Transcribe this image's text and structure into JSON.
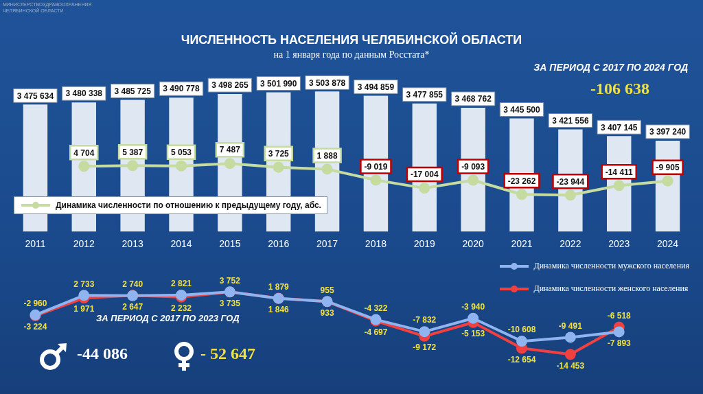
{
  "chart_data": [
    {
      "type": "bar",
      "title": "ЧИСЛЕННОСТЬ НАСЕЛЕНИЯ ЧЕЛЯБИНСКОЙ ОБЛАСТИ",
      "subtitle": "на 1 января года по данным Росстата*",
      "categories": [
        "2011",
        "2012",
        "2013",
        "2014",
        "2015",
        "2016",
        "2017",
        "2018",
        "2019",
        "2020",
        "2021",
        "2022",
        "2023",
        "2024"
      ],
      "series": [
        {
          "color": "#dfe7f2",
          "values": [
            3475634,
            3480338,
            3485725,
            3490778,
            3498265,
            3501990,
            3503878,
            3494859,
            3477855,
            3468762,
            3445500,
            3421556,
            3407145,
            3397240
          ],
          "value_labels": [
            "3 475 634",
            "3 480 338",
            "3 485 725",
            "3 490 778",
            "3 498 265",
            "3 501 990",
            "3 503 878",
            "3 494 859",
            "3 477 855",
            "3 468 762",
            "3 445 500",
            "3 421 556",
            "3 407 145",
            "3 397 240"
          ]
        },
        {
          "type": "line",
          "axis": "y2",
          "name": "Динамика численности по отношению к предыдущему году, абс.",
          "color": "#c5dba0",
          "values": [
            null,
            4704,
            5387,
            5053,
            7487,
            3725,
            1888,
            -9019,
            -17004,
            -9093,
            -23262,
            -23944,
            -14411,
            -9905
          ],
          "value_labels": [
            null,
            "4 704",
            "5 387",
            "5 053",
            "7 487",
            "3 725",
            "1 888",
            "-9 019",
            "-17 004",
            "-9 093",
            "-23 262",
            "-23 944",
            "-14 411",
            "-9 905"
          ]
        }
      ],
      "marker": "circle",
      "legend": "left",
      "tick_labels": "x",
      "annotations": [
        "МИНИСТЕРСТВОЗДРАВООХРАНЕНИЯ ЧЕЛЯБИНСКОЙ ОБЛАСТИ",
        "ЗА ПЕРИОД С 2017 ПО 2024 ГОД",
        "-106 638"
      ]
    },
    {
      "type": "line",
      "categories": [
        "2011",
        "2012",
        "2013",
        "2014",
        "2015",
        "2016",
        "2017",
        "2018",
        "2019",
        "2020",
        "2021",
        "2022",
        "2023",
        "2024"
      ],
      "series": [
        {
          "name": "Динамика численности мужского населения",
          "color": "#8fb4f0",
          "values": [
            -2960,
            2733,
            2647,
            2821,
            3752,
            1846,
            955,
            -4322,
            -7832,
            -3940,
            -10608,
            -9491,
            -7893,
            null
          ],
          "value_labels": [
            "-2 960",
            "2 733",
            "2 647",
            "2 821",
            "3 752",
            "1 846",
            "955",
            "-4 322",
            "-7 832",
            "-3 940",
            "-10 608",
            "-9 491",
            "-7 893",
            null
          ]
        },
        {
          "name": "Динамика численности женского населения",
          "color": "#f04040",
          "values": [
            -3224,
            1971,
            2740,
            2232,
            3735,
            1879,
            933,
            -4697,
            -9172,
            -5153,
            -12654,
            -14453,
            -6518,
            null
          ],
          "value_labels": [
            "-3 224",
            "1 971",
            "2 740",
            "2 232",
            "3 735",
            "1 879",
            "933",
            "-4 697",
            "-9 172",
            "-5 153",
            "-12 654",
            "-14 453",
            "-6 518",
            null
          ]
        }
      ],
      "marker": "circle",
      "legend": "top right",
      "tick_labels": false,
      "annotations": [
        "ЗА ПЕРИОД С 2017 ПО 2023 ГОД",
        "-44 086",
        "- 52 647"
      ]
    }
  ]
}
